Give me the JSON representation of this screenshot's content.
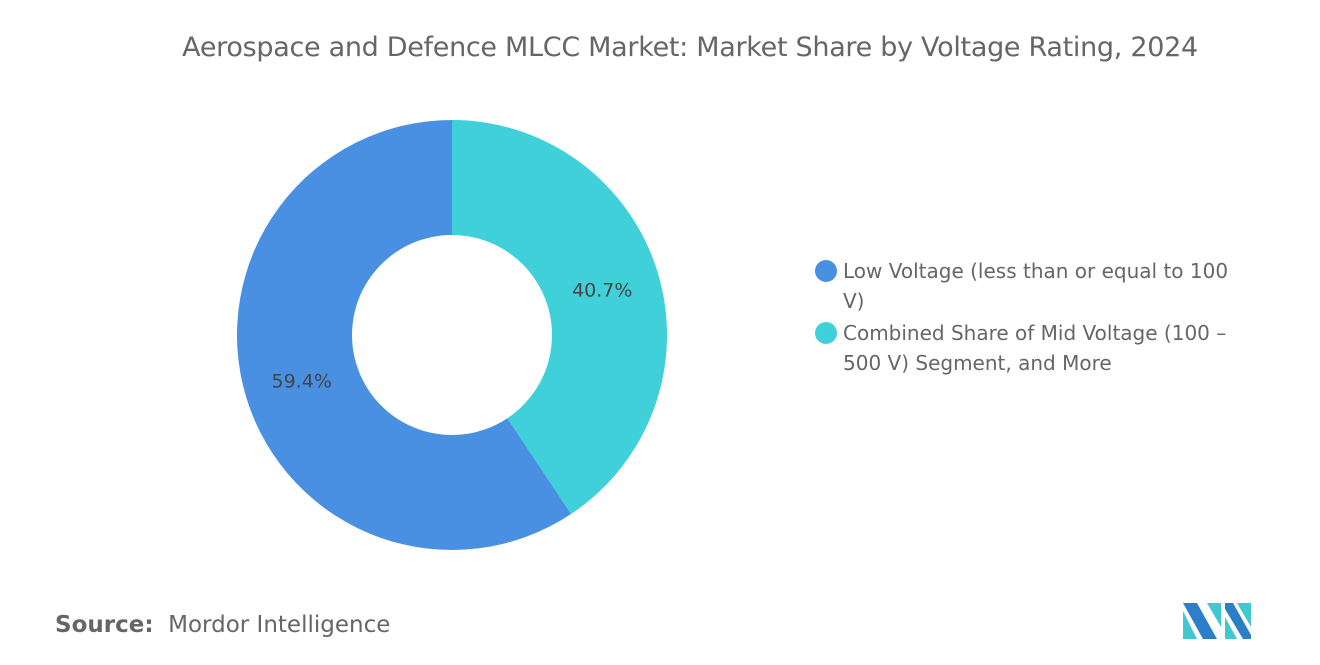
{
  "chart_data": {
    "type": "pie",
    "variant": "donut",
    "title": "Aerospace and Defence MLCC Market: Market Share by Voltage Rating, 2024",
    "slices": [
      {
        "label": "Combined Share of Mid Voltage (100 – 500 V) Segment, and More",
        "value": 40.7,
        "display": "40.7%",
        "color": "#3fd0d9"
      },
      {
        "label": "Low Voltage (less than or equal to 100 V)",
        "value": 59.4,
        "display": "59.4%",
        "color": "#4a90e2"
      }
    ],
    "legend_position": "right",
    "legend_order": [
      1,
      0
    ]
  },
  "source": {
    "label": "Source:",
    "value": "Mordor Intelligence"
  },
  "logo": {
    "text": "Mordor Intelligence",
    "colors": [
      "#2b7fc9",
      "#3fc8d0"
    ]
  }
}
